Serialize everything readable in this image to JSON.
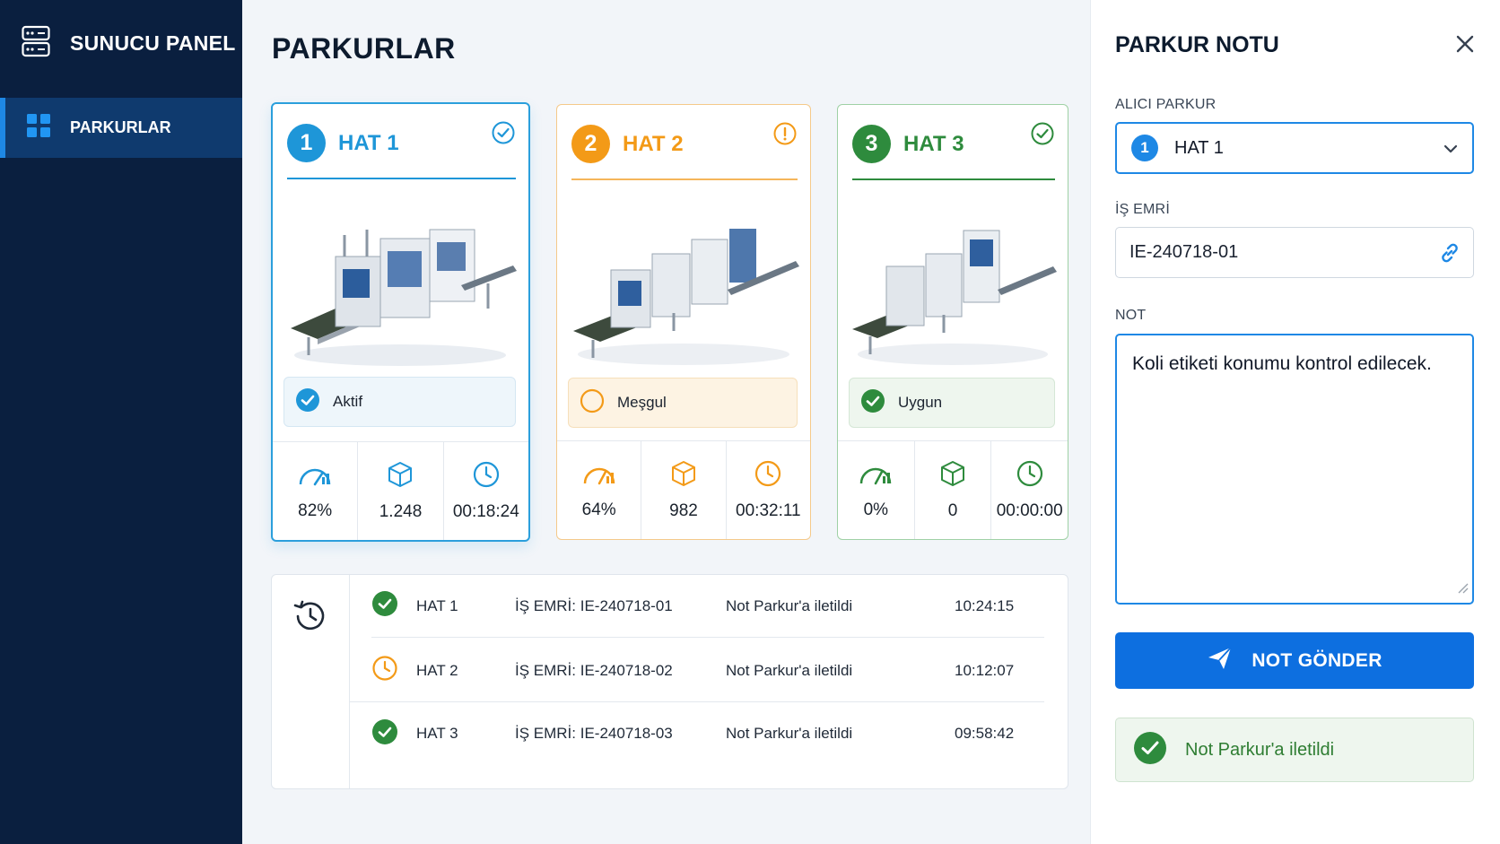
{
  "sidebar": {
    "title": "SUNUCU PANEL",
    "nav": [
      {
        "label": "PARKURLAR",
        "icon": "grid-icon",
        "active": true
      }
    ]
  },
  "main": {
    "title": "PARKURLAR",
    "lines": [
      {
        "number": "1",
        "name": "HAT 1",
        "color": "#1e96d8",
        "state_icon": "check-circle-icon",
        "status": "Aktif",
        "speed": "82%",
        "count": "1.248",
        "time": "00:18:24"
      },
      {
        "number": "2",
        "name": "HAT 2",
        "color": "#f39a17",
        "state_icon": "alert-circle-icon",
        "status": "Meşgul",
        "speed": "64%",
        "count": "982",
        "time": "00:32:11"
      },
      {
        "number": "3",
        "name": "HAT 3",
        "color": "#2e8b3d",
        "state_icon": "check-circle-icon",
        "status": "Uygun",
        "speed": "0%",
        "count": "0",
        "time": "00:00:00"
      }
    ],
    "history": [
      {
        "line": "HAT 1",
        "order": "İŞ EMRİ: IE-240718-01",
        "message": "Not Parkur'a iletildi",
        "time": "10:24:15",
        "status": "done"
      },
      {
        "line": "HAT 2",
        "order": "İŞ EMRİ: IE-240718-02",
        "message": "Not Parkur'a iletildi",
        "time": "10:12:07",
        "status": "pending"
      },
      {
        "line": "HAT 3",
        "order": "İŞ EMRİ: IE-240718-03",
        "message": "Not Parkur'a iletildi",
        "time": "09:58:42",
        "status": "done"
      }
    ]
  },
  "panel": {
    "title": "PARKUR NOTU",
    "recipient_label": "ALICI PARKUR",
    "recipient_number": "1",
    "recipient_value": "HAT 1",
    "order_label": "İŞ EMRİ",
    "order_value": "IE-240718-01",
    "note_label": "NOT",
    "note_value": "Koli etiketi konumu kontrol edilecek.",
    "send_label": "NOT GÖNDER",
    "toast": "Not Parkur'a iletildi"
  },
  "colors": {
    "accent": "#1e88e5",
    "sidebar": "#0a1f3f",
    "busy": "#f39a17",
    "ok": "#2e8b3d"
  }
}
